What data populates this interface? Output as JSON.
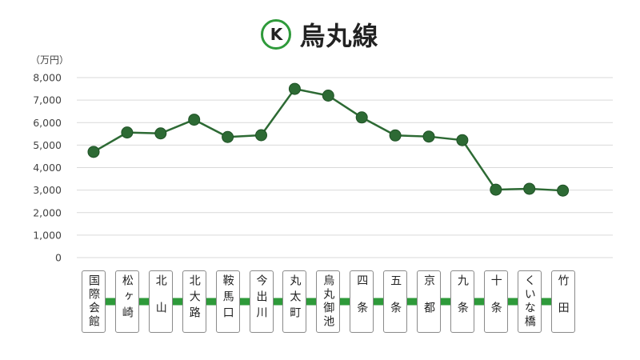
{
  "header": {
    "line_code": "K",
    "line_name": "烏丸線"
  },
  "colors": {
    "line_green": "#2e9a3a",
    "marker_fill": "#2d6a34",
    "grid": "#d9d9d9"
  },
  "chart_data": {
    "type": "line",
    "title": "烏丸線",
    "ylabel": "（万円）",
    "xlabel": "",
    "ylim": [
      0,
      8000
    ],
    "yticks": [
      0,
      1000,
      2000,
      3000,
      4000,
      5000,
      6000,
      7000,
      8000
    ],
    "ytick_labels": [
      "0",
      "1,000",
      "2,000",
      "3,000",
      "4,000",
      "5,000",
      "6,000",
      "7,000",
      "8,000"
    ],
    "grid": true,
    "categories": [
      "国際会館",
      "松ヶ崎",
      "北山",
      "北大路",
      "鞍馬口",
      "今出川",
      "丸太町",
      "烏丸御池",
      "四条",
      "五条",
      "京都",
      "九条",
      "十条",
      "くいな橋",
      "竹田"
    ],
    "series": [
      {
        "values": [
          4700,
          5560,
          5520,
          6130,
          5360,
          5440,
          7500,
          7200,
          6230,
          5430,
          5380,
          5220,
          3020,
          3060,
          2980
        ]
      }
    ]
  }
}
